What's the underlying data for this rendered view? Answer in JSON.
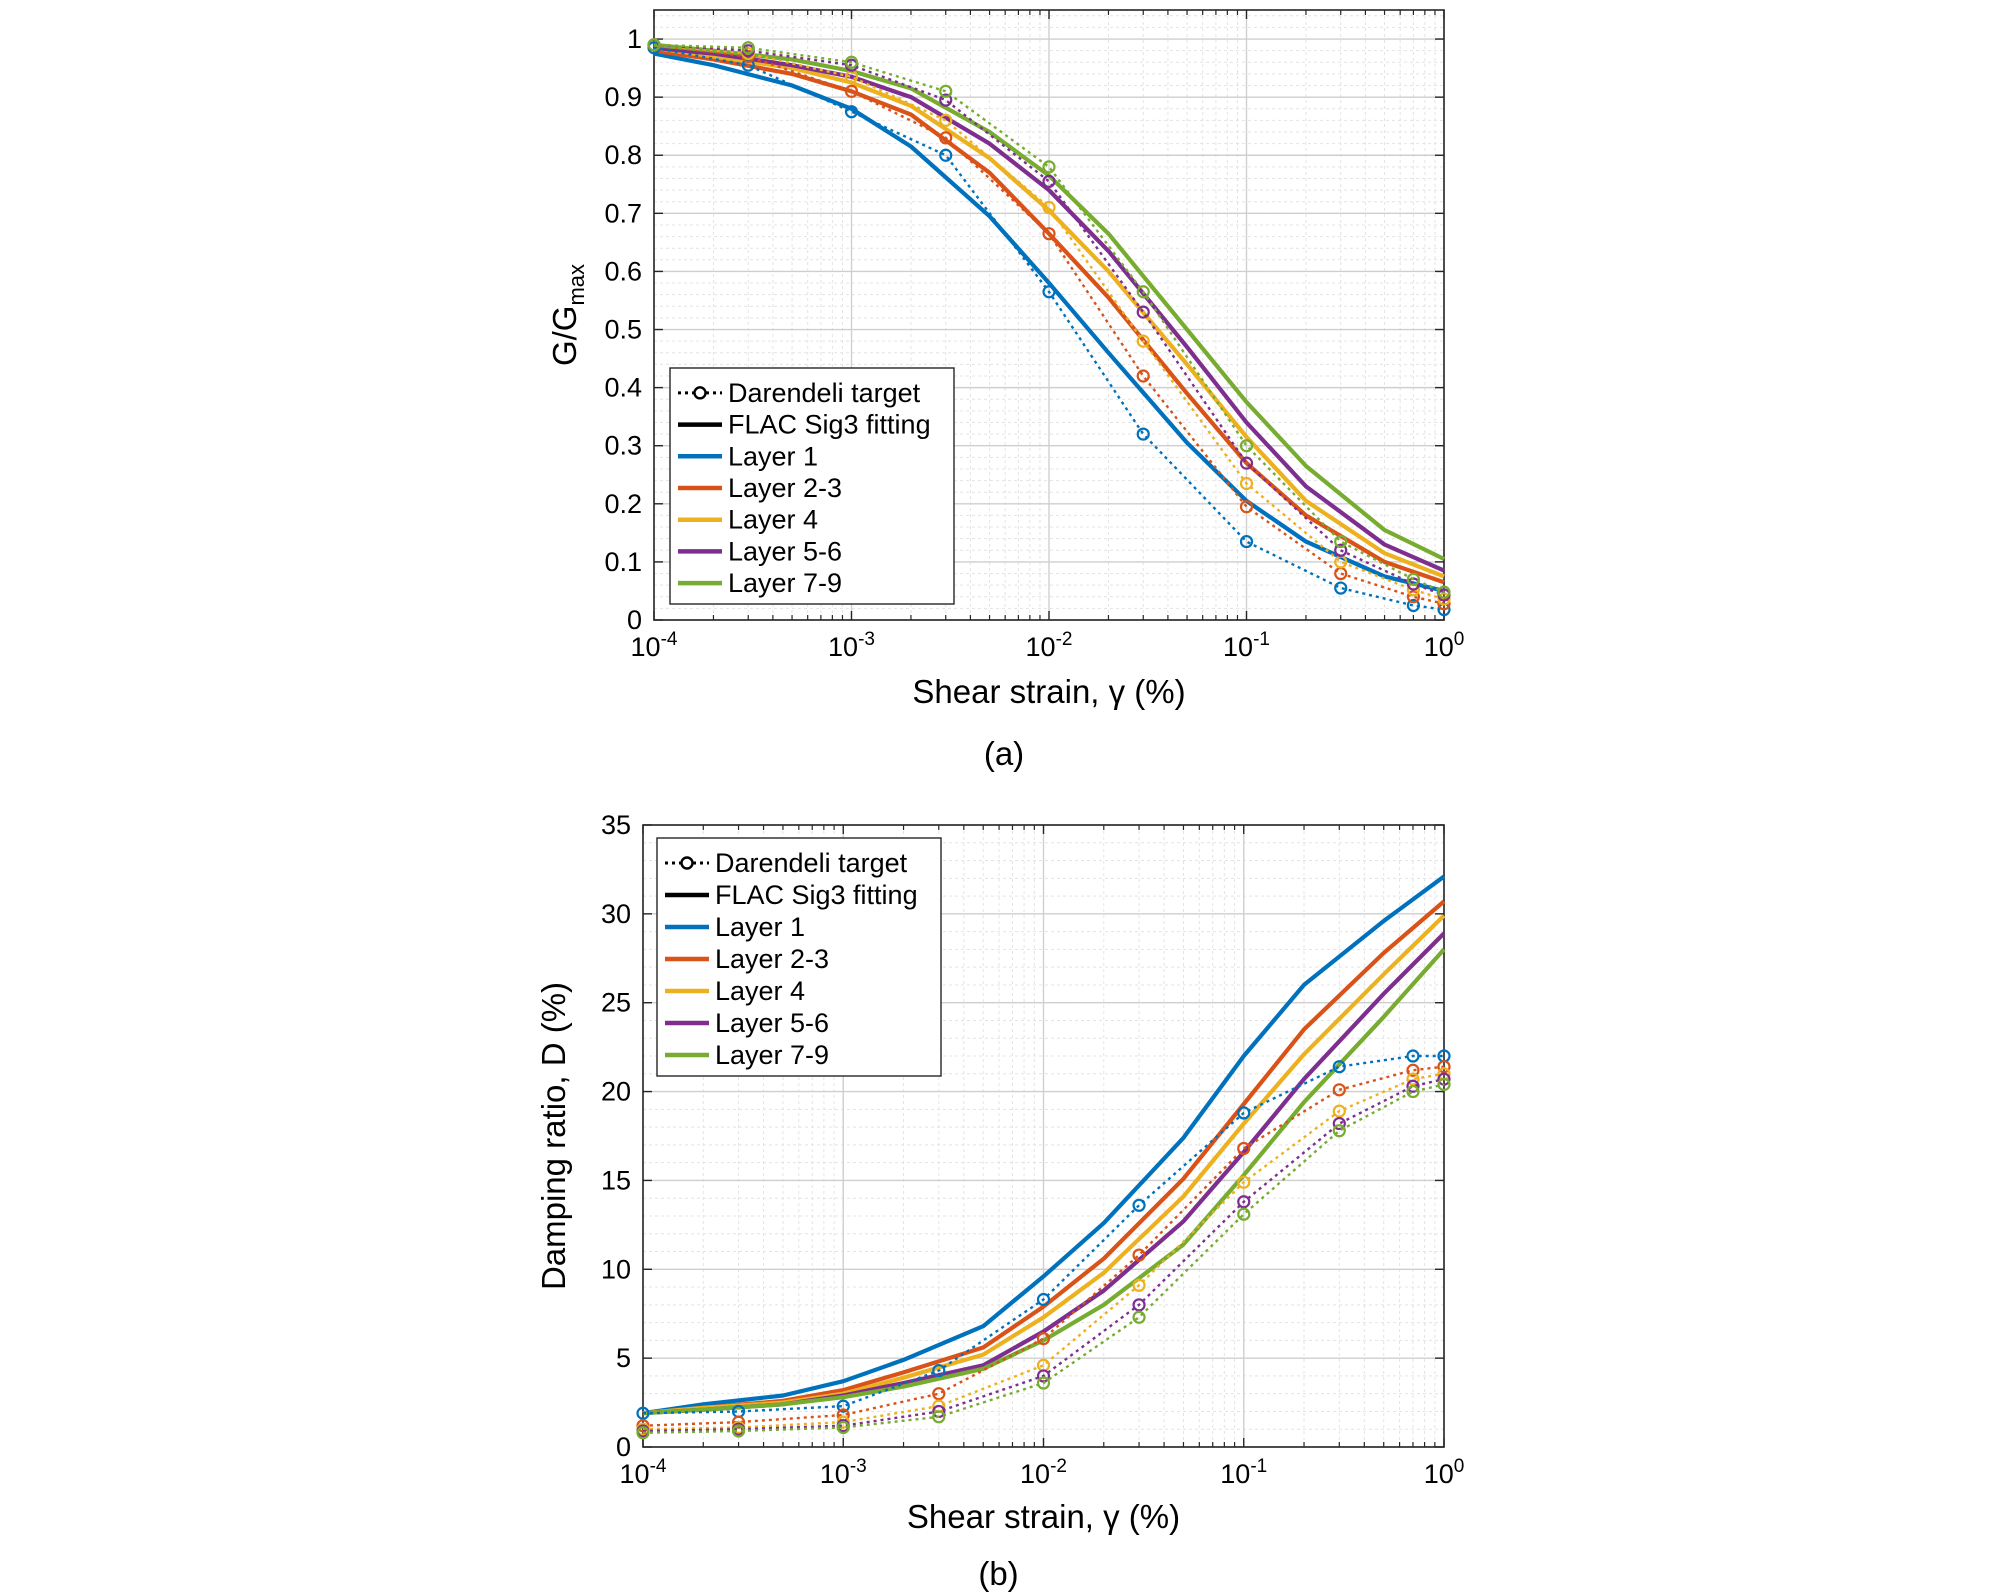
{
  "chart_data": [
    {
      "type": "line",
      "caption": "(a)",
      "xlabel": "Shear strain, γ (%)",
      "ylabel": "G/Gmax",
      "ylabel_main": "G/G",
      "ylabel_sub": "max",
      "xscale": "log",
      "xlim": [
        0.0001,
        1
      ],
      "ylim": [
        0,
        1.05
      ],
      "xticks": [
        0.0001,
        0.001,
        0.01,
        0.1,
        1
      ],
      "xtick_labels": [
        {
          "base": "10",
          "exp": "-4"
        },
        {
          "base": "10",
          "exp": "-3"
        },
        {
          "base": "10",
          "exp": "-2"
        },
        {
          "base": "10",
          "exp": "-1"
        },
        {
          "base": "10",
          "exp": "0"
        }
      ],
      "yticks": [
        0,
        0.1,
        0.2,
        0.3,
        0.4,
        0.5,
        0.6,
        0.7,
        0.8,
        0.9,
        1
      ],
      "ytick_labels": [
        "0",
        "0.1",
        "0.2",
        "0.3",
        "0.4",
        "0.5",
        "0.6",
        "0.7",
        "0.8",
        "0.9",
        "1"
      ],
      "grid": "on (major and minor)",
      "legend_position": "bottom-left",
      "legend": [
        {
          "label": "Darendeli target",
          "style": "dotted-marker",
          "color": "#000000"
        },
        {
          "label": "FLAC Sig3 fitting",
          "style": "solid",
          "color": "#000000"
        },
        {
          "label": "Layer 1",
          "style": "solid",
          "color": "#0072BD"
        },
        {
          "label": "Layer 2-3",
          "style": "solid",
          "color": "#D95319"
        },
        {
          "label": "Layer 4",
          "style": "solid",
          "color": "#EDB120"
        },
        {
          "label": "Layer 5-6",
          "style": "solid",
          "color": "#7E2F8E"
        },
        {
          "label": "Layer 7-9",
          "style": "solid",
          "color": "#77AC30"
        }
      ],
      "target_x": [
        0.0001,
        0.0003,
        0.001,
        0.003,
        0.01,
        0.03,
        0.1,
        0.3,
        0.7,
        1
      ],
      "fit_x": [
        0.0001,
        0.0002,
        0.0005,
        0.001,
        0.002,
        0.005,
        0.01,
        0.02,
        0.05,
        0.1,
        0.2,
        0.5,
        1
      ],
      "series": [
        {
          "name": "Layer 1",
          "color": "#0072BD",
          "target": [
            0.985,
            0.955,
            0.875,
            0.8,
            0.565,
            0.32,
            0.135,
            0.055,
            0.025,
            0.018
          ],
          "fit": [
            0.975,
            0.955,
            0.92,
            0.88,
            0.815,
            0.695,
            0.58,
            0.46,
            0.305,
            0.205,
            0.135,
            0.075,
            0.05
          ]
        },
        {
          "name": "Layer 2-3",
          "color": "#D95319",
          "target": [
            0.99,
            0.97,
            0.91,
            0.83,
            0.665,
            0.42,
            0.195,
            0.08,
            0.04,
            0.028
          ],
          "fit": [
            0.98,
            0.965,
            0.94,
            0.91,
            0.87,
            0.77,
            0.665,
            0.555,
            0.39,
            0.27,
            0.18,
            0.1,
            0.065
          ]
        },
        {
          "name": "Layer 4",
          "color": "#EDB120",
          "target": [
            0.99,
            0.975,
            0.935,
            0.86,
            0.71,
            0.48,
            0.235,
            0.1,
            0.052,
            0.036
          ],
          "fit": [
            0.985,
            0.97,
            0.95,
            0.925,
            0.885,
            0.795,
            0.705,
            0.6,
            0.44,
            0.315,
            0.205,
            0.115,
            0.075
          ]
        },
        {
          "name": "Layer 5-6",
          "color": "#7E2F8E",
          "target": [
            0.99,
            0.98,
            0.955,
            0.895,
            0.755,
            0.53,
            0.27,
            0.12,
            0.062,
            0.043
          ],
          "fit": [
            0.985,
            0.975,
            0.955,
            0.935,
            0.9,
            0.82,
            0.74,
            0.635,
            0.47,
            0.34,
            0.23,
            0.13,
            0.085
          ]
        },
        {
          "name": "Layer 7-9",
          "color": "#77AC30",
          "target": [
            0.99,
            0.985,
            0.96,
            0.91,
            0.78,
            0.565,
            0.3,
            0.135,
            0.07,
            0.048
          ],
          "fit": [
            0.99,
            0.98,
            0.965,
            0.945,
            0.915,
            0.84,
            0.765,
            0.665,
            0.5,
            0.375,
            0.265,
            0.155,
            0.105
          ]
        }
      ]
    },
    {
      "type": "line",
      "caption": "(b)",
      "xlabel": "Shear strain, γ (%)",
      "ylabel": "Damping ratio, D (%)",
      "xscale": "log",
      "xlim": [
        0.0001,
        1
      ],
      "ylim": [
        0,
        35
      ],
      "xticks": [
        0.0001,
        0.001,
        0.01,
        0.1,
        1
      ],
      "xtick_labels": [
        {
          "base": "10",
          "exp": "-4"
        },
        {
          "base": "10",
          "exp": "-3"
        },
        {
          "base": "10",
          "exp": "-2"
        },
        {
          "base": "10",
          "exp": "-1"
        },
        {
          "base": "10",
          "exp": "0"
        }
      ],
      "yticks": [
        0,
        5,
        10,
        15,
        20,
        25,
        30,
        35
      ],
      "ytick_labels": [
        "0",
        "5",
        "10",
        "15",
        "20",
        "25",
        "30",
        "35"
      ],
      "grid": "on (major and minor)",
      "legend_position": "top-left",
      "legend": [
        {
          "label": "Darendeli target",
          "style": "dotted-marker",
          "color": "#000000"
        },
        {
          "label": "FLAC Sig3 fitting",
          "style": "solid",
          "color": "#000000"
        },
        {
          "label": "Layer 1",
          "style": "solid",
          "color": "#0072BD"
        },
        {
          "label": "Layer 2-3",
          "style": "solid",
          "color": "#D95319"
        },
        {
          "label": "Layer 4",
          "style": "solid",
          "color": "#EDB120"
        },
        {
          "label": "Layer 5-6",
          "style": "solid",
          "color": "#7E2F8E"
        },
        {
          "label": "Layer 7-9",
          "style": "solid",
          "color": "#77AC30"
        }
      ],
      "target_x": [
        0.0001,
        0.0003,
        0.001,
        0.003,
        0.01,
        0.03,
        0.1,
        0.3,
        0.7,
        1
      ],
      "fit_x": [
        0.0001,
        0.0002,
        0.0005,
        0.001,
        0.002,
        0.005,
        0.01,
        0.02,
        0.05,
        0.1,
        0.2,
        0.5,
        1
      ],
      "series": [
        {
          "name": "Layer 1",
          "color": "#0072BD",
          "target": [
            1.9,
            2.0,
            2.3,
            4.3,
            8.3,
            13.6,
            18.8,
            21.4,
            22.0,
            22.0
          ],
          "fit": [
            1.9,
            2.4,
            2.9,
            3.7,
            4.9,
            6.8,
            9.6,
            12.6,
            17.4,
            22.0,
            26.0,
            29.6,
            32.1
          ]
        },
        {
          "name": "Layer 2-3",
          "color": "#D95319",
          "target": [
            1.2,
            1.4,
            1.8,
            3.0,
            6.1,
            10.8,
            16.8,
            20.1,
            21.2,
            21.4
          ],
          "fit": [
            1.9,
            2.2,
            2.6,
            3.2,
            4.2,
            5.6,
            7.9,
            10.6,
            15.1,
            19.3,
            23.5,
            27.8,
            30.7
          ]
        },
        {
          "name": "Layer 4",
          "color": "#EDB120",
          "target": [
            1.0,
            1.1,
            1.4,
            2.3,
            4.6,
            9.1,
            14.9,
            18.9,
            20.7,
            21.0
          ],
          "fit": [
            1.9,
            2.2,
            2.5,
            3.0,
            3.9,
            5.2,
            7.3,
            9.8,
            14.1,
            18.2,
            22.1,
            26.6,
            29.9
          ]
        },
        {
          "name": "Layer 5-6",
          "color": "#7E2F8E",
          "target": [
            0.9,
            1.0,
            1.2,
            2.0,
            4.0,
            8.0,
            13.8,
            18.2,
            20.3,
            20.7
          ],
          "fit": [
            1.9,
            2.1,
            2.4,
            2.9,
            3.6,
            4.6,
            6.5,
            8.8,
            12.7,
            16.6,
            20.7,
            25.5,
            28.9
          ]
        },
        {
          "name": "Layer 7-9",
          "color": "#77AC30",
          "target": [
            0.8,
            0.9,
            1.1,
            1.7,
            3.6,
            7.3,
            13.1,
            17.8,
            20.0,
            20.4
          ],
          "fit": [
            1.9,
            2.1,
            2.4,
            2.8,
            3.4,
            4.4,
            6.0,
            8.0,
            11.4,
            15.3,
            19.4,
            24.2,
            28.0
          ]
        }
      ]
    }
  ]
}
